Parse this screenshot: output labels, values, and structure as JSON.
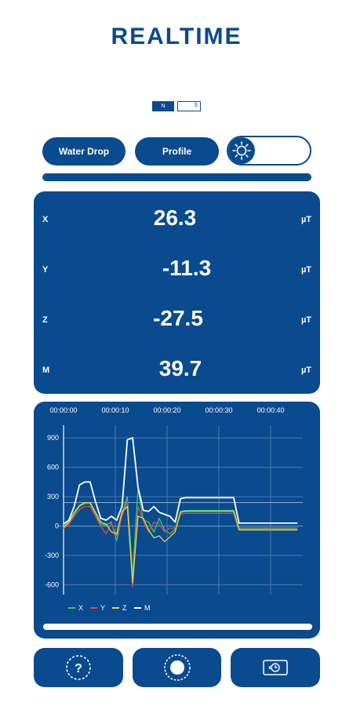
{
  "header": {
    "title": "REALTIME"
  },
  "pole_toggle": {
    "north": "N",
    "south": "S"
  },
  "buttons": {
    "water_drop": "Water Drop",
    "profile": "Profile"
  },
  "light_toggle": {
    "icon": "sun-icon",
    "state": "off"
  },
  "progress": {
    "value": 1.0
  },
  "readings": [
    {
      "axis": "X",
      "value": "26.3",
      "unit": "µT"
    },
    {
      "axis": "Y",
      "value": "-11.3",
      "unit": "µT"
    },
    {
      "axis": "Z",
      "value": "-27.5",
      "unit": "µT"
    },
    {
      "axis": "M",
      "value": "39.7",
      "unit": "µT"
    }
  ],
  "chart_data": {
    "type": "line",
    "x_ticks": [
      "00:00:00",
      "00:00:10",
      "00:00:20",
      "00:00:30",
      "00:00:40"
    ],
    "y_ticks": [
      900,
      600,
      300,
      0,
      -300,
      -600
    ],
    "ylim": [
      -700,
      950
    ],
    "xlim": [
      0,
      45
    ],
    "grid": true,
    "legend_position": "bottom-left",
    "threshold": 240,
    "x": [
      0,
      1,
      2,
      3,
      4,
      5,
      6,
      7,
      8,
      9,
      10,
      11,
      12,
      13,
      14,
      15,
      16,
      17,
      18,
      19,
      20,
      21,
      22,
      23,
      24,
      25,
      26,
      27,
      28,
      29,
      30,
      31,
      32,
      33,
      34,
      35,
      36,
      37,
      38,
      39,
      40,
      41,
      42,
      43,
      44
    ],
    "series": [
      {
        "name": "X",
        "color": "#2ecc71",
        "values": [
          -20,
          30,
          120,
          200,
          230,
          230,
          120,
          20,
          10,
          40,
          -150,
          120,
          300,
          -500,
          380,
          60,
          40,
          -60,
          80,
          -40,
          -80,
          -30,
          150,
          160,
          160,
          160,
          160,
          160,
          160,
          160,
          160,
          160,
          160,
          -20,
          -20,
          -20,
          -20,
          -20,
          -20,
          -20,
          -20,
          -20,
          -20,
          -20,
          -20
        ]
      },
      {
        "name": "Y",
        "color": "#e74c3c",
        "values": [
          -30,
          20,
          100,
          170,
          200,
          200,
          100,
          0,
          -80,
          30,
          -100,
          100,
          250,
          -620,
          200,
          50,
          -60,
          40,
          20,
          -60,
          -20,
          -20,
          120,
          130,
          130,
          130,
          130,
          130,
          130,
          130,
          130,
          130,
          130,
          -30,
          -30,
          -30,
          -30,
          -30,
          -30,
          -30,
          -30,
          -30,
          -30,
          -30,
          -30
        ]
      },
      {
        "name": "Z",
        "color": "#e6d44c",
        "values": [
          -10,
          40,
          140,
          210,
          240,
          240,
          140,
          40,
          20,
          -60,
          -80,
          150,
          200,
          -580,
          100,
          80,
          -40,
          -120,
          -100,
          -160,
          -110,
          -60,
          140,
          150,
          150,
          150,
          150,
          150,
          150,
          150,
          150,
          150,
          150,
          -40,
          -40,
          -40,
          -40,
          -40,
          -40,
          -40,
          -40,
          -40,
          -40,
          -40,
          -40
        ]
      },
      {
        "name": "M",
        "color": "#ffffff",
        "values": [
          20,
          60,
          200,
          420,
          450,
          450,
          250,
          80,
          60,
          100,
          60,
          200,
          880,
          900,
          400,
          160,
          150,
          200,
          140,
          120,
          100,
          40,
          280,
          290,
          290,
          290,
          290,
          290,
          290,
          290,
          290,
          290,
          290,
          30,
          30,
          30,
          30,
          30,
          30,
          30,
          30,
          30,
          30,
          30,
          30
        ]
      }
    ]
  },
  "bottom_bar": [
    {
      "icon": "help-icon"
    },
    {
      "icon": "record-icon"
    },
    {
      "icon": "history-icon"
    }
  ]
}
